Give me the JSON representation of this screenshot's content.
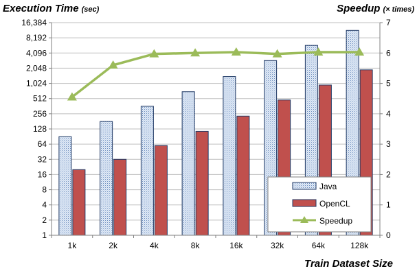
{
  "chart_data": {
    "type": "bar",
    "left_axis_title": "Execution Time",
    "left_axis_unit": "(sec)",
    "right_axis_title": "Speedup",
    "right_axis_unit": "(× times)",
    "xlabel": "Train Dataset Size",
    "categories": [
      "1k",
      "2k",
      "4k",
      "8k",
      "16k",
      "32k",
      "64k",
      "128k"
    ],
    "left_scale": "log2",
    "left_ticks": [
      "1",
      "2",
      "4",
      "8",
      "16",
      "32",
      "64",
      "128",
      "256",
      "512",
      "1,024",
      "2,048",
      "4,096",
      "8,192",
      "16,384"
    ],
    "left_ylim": [
      1,
      16384
    ],
    "right_ticks": [
      "0",
      "1",
      "2",
      "3",
      "4",
      "5",
      "6",
      "7"
    ],
    "right_ylim": [
      0,
      7
    ],
    "series": [
      {
        "name": "Java",
        "axis": "left",
        "kind": "bar",
        "color": "#c6d9f1",
        "values": [
          90,
          180,
          360,
          700,
          1400,
          2900,
          5800,
          11500
        ]
      },
      {
        "name": "OpenCL",
        "axis": "left",
        "kind": "bar",
        "color": "#c0504d",
        "values": [
          20,
          32,
          60,
          115,
          230,
          480,
          950,
          1900
        ]
      },
      {
        "name": "Speedup",
        "axis": "right",
        "kind": "line",
        "color": "#9bbb59",
        "values": [
          4.55,
          5.6,
          5.97,
          6.0,
          6.03,
          5.97,
          6.03,
          6.03
        ]
      }
    ],
    "grid": true,
    "legend": "bottom-right"
  }
}
